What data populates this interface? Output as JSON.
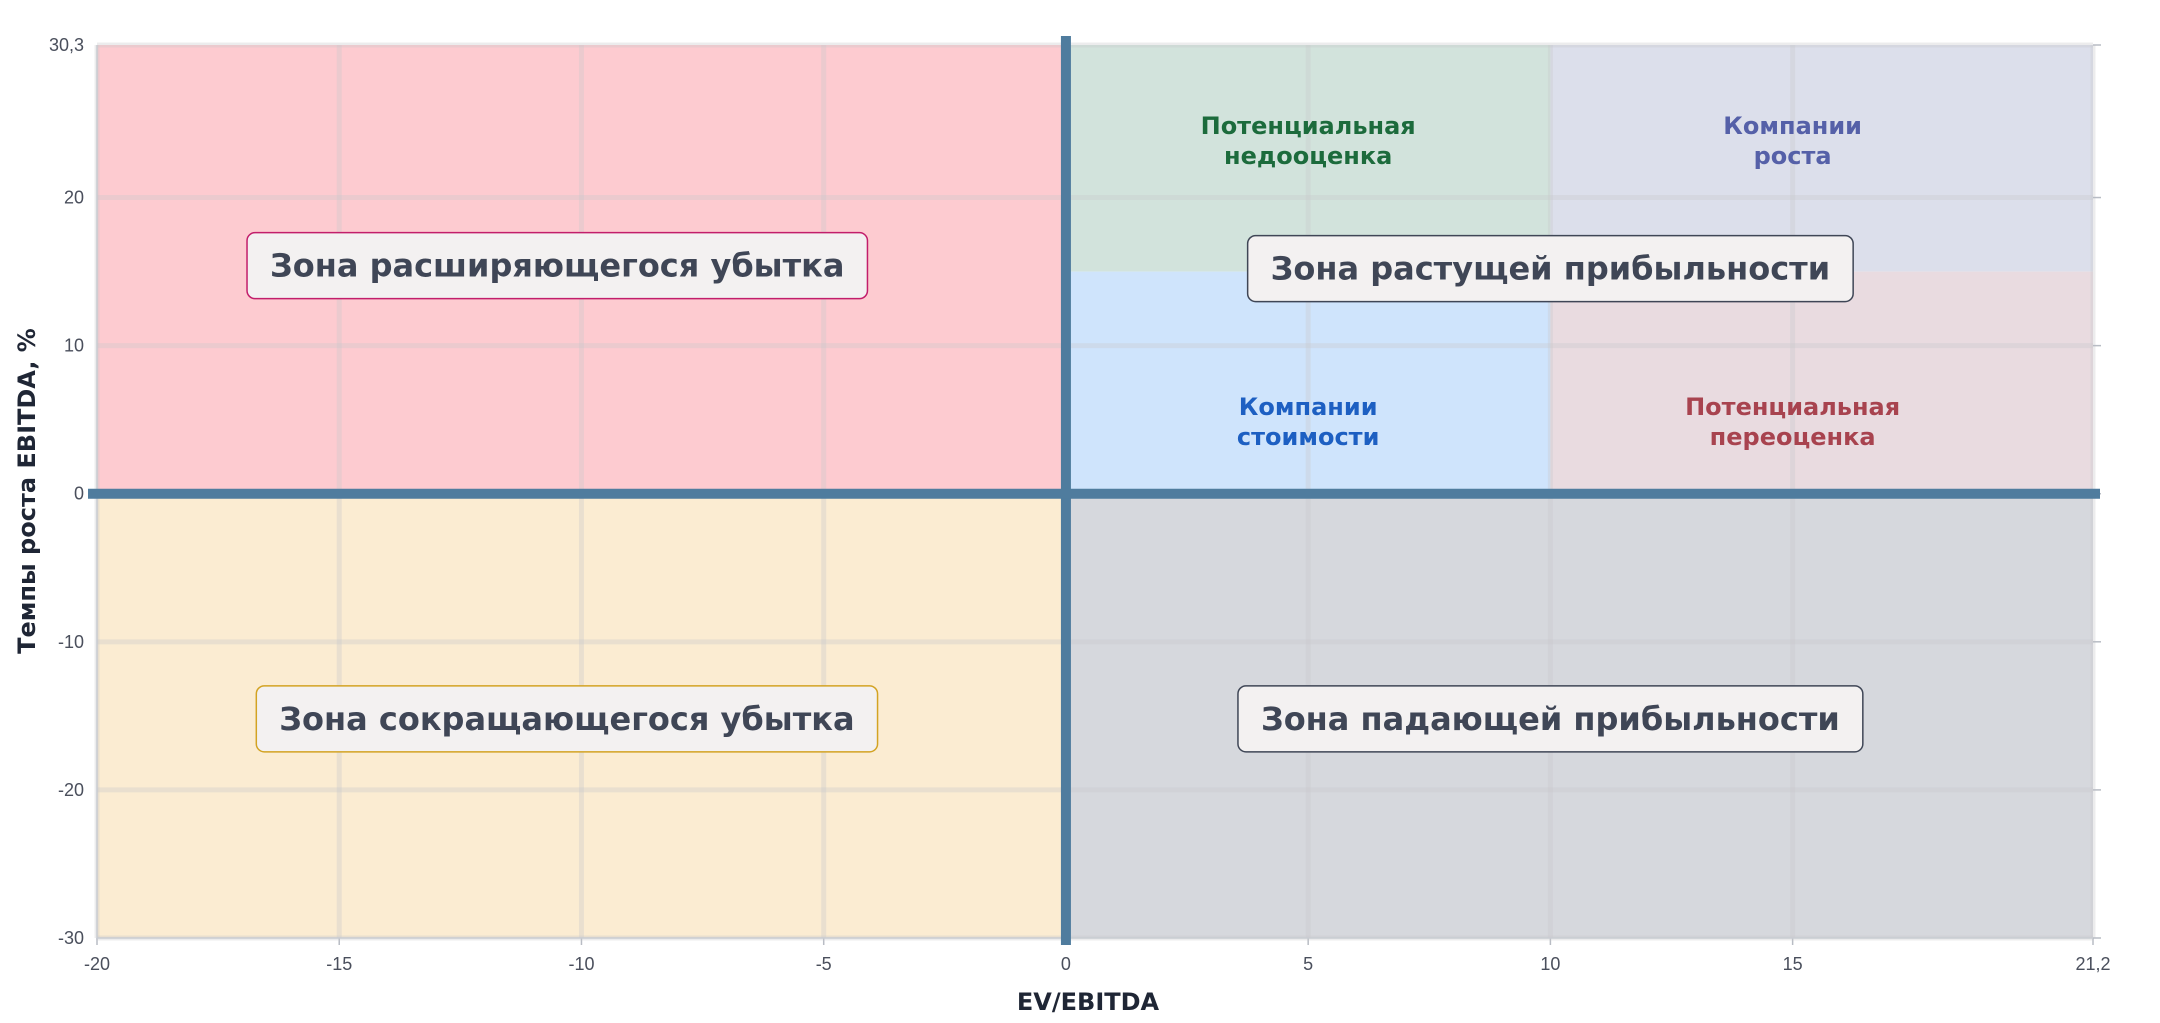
{
  "chart_data": {
    "type": "quadrant",
    "xlabel": "EV/EBITDA",
    "ylabel": "Темпы роста EBITDA, %",
    "xlim": [
      -20,
      21.2
    ],
    "ylim": [
      -30,
      30.3
    ],
    "x_ticks": [
      {
        "value": -20,
        "label": "-20"
      },
      {
        "value": -15,
        "label": "-15"
      },
      {
        "value": -10,
        "label": "-10"
      },
      {
        "value": -5,
        "label": "-5"
      },
      {
        "value": 0,
        "label": "0"
      },
      {
        "value": 5,
        "label": "5"
      },
      {
        "value": 10,
        "label": "10"
      },
      {
        "value": 15,
        "label": "15"
      },
      {
        "value": 21.2,
        "label": "21,2"
      }
    ],
    "y_ticks": [
      {
        "value": 30.3,
        "label": "30,3"
      },
      {
        "value": 20,
        "label": "20"
      },
      {
        "value": 10,
        "label": "10"
      },
      {
        "value": 0,
        "label": "0"
      },
      {
        "value": -10,
        "label": "-10"
      },
      {
        "value": -20,
        "label": "-20"
      },
      {
        "value": -30,
        "label": "-30"
      }
    ],
    "grid": true,
    "regions": [
      {
        "x": [
          -20,
          0
        ],
        "y": [
          0,
          30.3
        ],
        "color": "#fdcbd0"
      },
      {
        "x": [
          -20,
          0
        ],
        "y": [
          -30,
          0
        ],
        "color": "#fbecd2"
      },
      {
        "x": [
          0,
          21.2
        ],
        "y": [
          -30,
          0
        ],
        "color": "#d6d8dd"
      },
      {
        "x": [
          0,
          10
        ],
        "y": [
          15,
          30.3
        ],
        "color": "#d2e3dc"
      },
      {
        "x": [
          10,
          21.2
        ],
        "y": [
          15,
          30.3
        ],
        "color": "#dcdfeb"
      },
      {
        "x": [
          0,
          10
        ],
        "y": [
          0,
          15
        ],
        "color": "#cfe4fc"
      },
      {
        "x": [
          10,
          21.2
        ],
        "y": [
          0,
          15
        ],
        "color": "#e9dbe0"
      }
    ],
    "sub_labels": [
      {
        "lines": [
          "Потенциальная",
          "недооценка"
        ],
        "x": 5,
        "y": 24.3,
        "color": "#1c6b3c"
      },
      {
        "lines": [
          "Компании",
          "роста"
        ],
        "x": 15,
        "y": 24.3,
        "color": "#5560a8"
      },
      {
        "lines": [
          "Компании",
          "стоимости"
        ],
        "x": 5,
        "y": 5.3,
        "color": "#1d5fc2"
      },
      {
        "lines": [
          "Потенциальная",
          "переоценка"
        ],
        "x": 15,
        "y": 5.3,
        "color": "#a8434f"
      }
    ],
    "zone_labels": [
      {
        "text": "Зона расширяющегося убытка",
        "x": -10.5,
        "y": 15.4,
        "border": "#c21e6b"
      },
      {
        "text": "Зона растущей прибыльности",
        "x": 10,
        "y": 15.2,
        "border": "#3f4656"
      },
      {
        "text": "Зона сокращающегося убытка",
        "x": -10.3,
        "y": -15.2,
        "border": "#d3a323"
      },
      {
        "text": "Зона падающей прибыльности",
        "x": 10,
        "y": -15.2,
        "border": "#3f4656"
      }
    ],
    "axis_line_color": "#4f7c9e"
  }
}
